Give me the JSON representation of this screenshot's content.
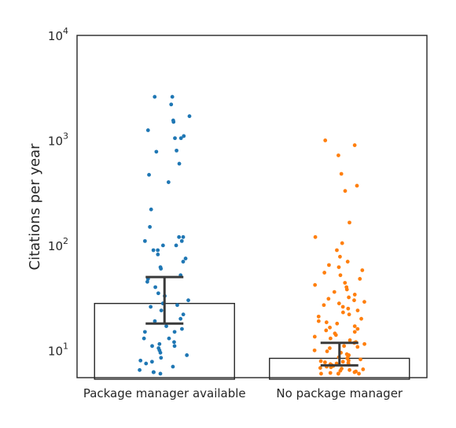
{
  "chart_data": {
    "type": "bar",
    "xlabel": "",
    "ylabel": "Citations per year",
    "yscale": "log",
    "ylim": [
      5.5,
      10000
    ],
    "yticks": [
      {
        "value": 10,
        "base": "10",
        "exp": "1"
      },
      {
        "value": 100,
        "base": "10",
        "exp": "2"
      },
      {
        "value": 1000,
        "base": "10",
        "exp": "3"
      },
      {
        "value": 10000,
        "base": "10",
        "exp": "4"
      }
    ],
    "categories": [
      "Package manager available",
      "No package manager"
    ],
    "bars": [
      {
        "category": "Package manager available",
        "value": 28,
        "ci": [
          18,
          50
        ]
      },
      {
        "category": "No package manager",
        "value": 8.4,
        "ci": [
          7.2,
          11.8
        ]
      }
    ],
    "point_colors": [
      "#1f77b4",
      "#ff7f0e"
    ],
    "points": [
      [
        2600,
        2600,
        2200,
        1700,
        1500,
        1550,
        1250,
        1100,
        1050,
        1050,
        800,
        780,
        600,
        470,
        400,
        220,
        150,
        120,
        120,
        110,
        110,
        100,
        100,
        90,
        90,
        82,
        75,
        70,
        62,
        60,
        52,
        48,
        45,
        40,
        35,
        33,
        30,
        28,
        27,
        26,
        24,
        22,
        20,
        19,
        17,
        16,
        15,
        15,
        13,
        13,
        12,
        11.5,
        11,
        11,
        10.5,
        10,
        9.5,
        9,
        8.5,
        8,
        7.8,
        7.5,
        7,
        6.5,
        6.2,
        6.2,
        6.0
      ],
      [
        1000,
        900,
        720,
        480,
        370,
        330,
        165,
        120,
        105,
        90,
        78,
        70,
        65,
        62,
        58,
        55,
        52,
        48,
        44,
        42,
        40,
        38,
        36,
        34,
        32,
        31,
        30,
        29,
        28,
        27,
        26,
        25,
        24,
        23,
        22,
        21,
        20,
        19,
        18.5,
        18,
        17,
        16.5,
        16,
        15.5,
        15,
        14.5,
        14,
        13.5,
        13,
        12.5,
        12,
        11.8,
        11.5,
        11,
        10.8,
        10.5,
        10,
        9.8,
        9.5,
        9.2,
        9,
        8.8,
        8.6,
        8.4,
        8.2,
        8,
        7.9,
        7.8,
        7.7,
        7.6,
        7.5,
        7.4,
        7.3,
        7.2,
        7.1,
        7,
        6.9,
        6.8,
        6.7,
        6.6,
        6.5,
        6.4,
        6.3,
        6.2,
        6.1,
        6.0,
        6.0,
        6.0,
        6.0
      ]
    ]
  }
}
